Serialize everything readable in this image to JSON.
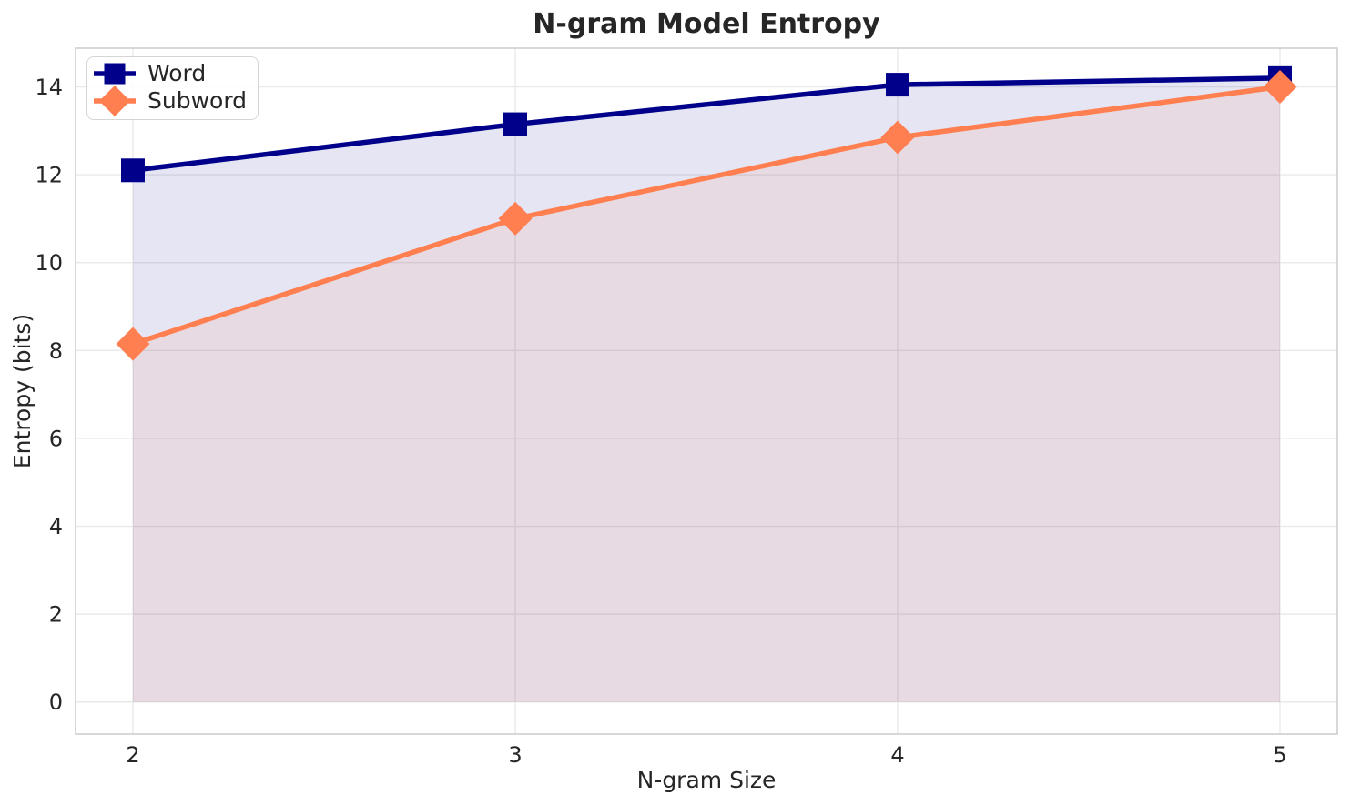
{
  "chart_data": {
    "type": "line",
    "title": "N-gram Model Entropy",
    "xlabel": "N-gram Size",
    "ylabel": "Entropy (bits)",
    "x": [
      2,
      3,
      4,
      5
    ],
    "series": [
      {
        "name": "Word",
        "color": "#00008B",
        "marker": "square",
        "line_width": 5.5,
        "fill_to_zero": true,
        "fill_opacity": 0.1,
        "values": [
          12.1,
          13.15,
          14.05,
          14.2
        ]
      },
      {
        "name": "Subword",
        "color": "#FF7F50",
        "marker": "diamond",
        "line_width": 5.5,
        "fill_to_zero": true,
        "fill_opacity": 0.1,
        "values": [
          8.15,
          11.0,
          12.85,
          14.0
        ]
      }
    ],
    "xticks": [
      "2",
      "3",
      "4",
      "5"
    ],
    "xtick_values": [
      2,
      3,
      4,
      5
    ],
    "yticks": [
      "0",
      "2",
      "4",
      "6",
      "8",
      "10",
      "12",
      "14"
    ],
    "ytick_values": [
      0,
      2,
      4,
      6,
      8,
      10,
      12,
      14
    ],
    "xlim": [
      1.85,
      5.15
    ],
    "ylim": [
      -0.73,
      14.88
    ],
    "grid": true,
    "legend_position": "upper left",
    "colors": {
      "grid": "#e9e9e9",
      "spine": "#cbcbcb",
      "text": "#262626",
      "background": "#ffffff"
    }
  }
}
